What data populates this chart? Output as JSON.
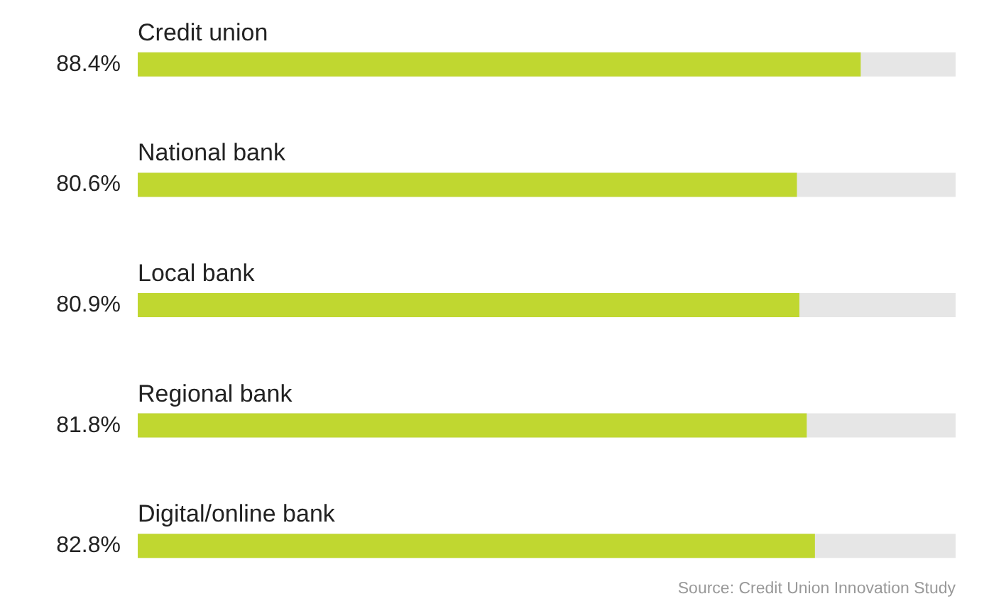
{
  "chart_data": {
    "type": "bar",
    "orientation": "horizontal",
    "categories": [
      "Credit union",
      "National bank",
      "Local bank",
      "Regional bank",
      "Digital/online bank"
    ],
    "values": [
      88.4,
      80.6,
      80.9,
      81.8,
      82.8
    ],
    "value_labels": [
      "88.4%",
      "80.6%",
      "80.9%",
      "81.8%",
      "82.8%"
    ],
    "color": "#c0d730",
    "xlim": [
      0,
      100
    ],
    "annotations": [
      "Source: Credit Union Innovation Study"
    ]
  }
}
